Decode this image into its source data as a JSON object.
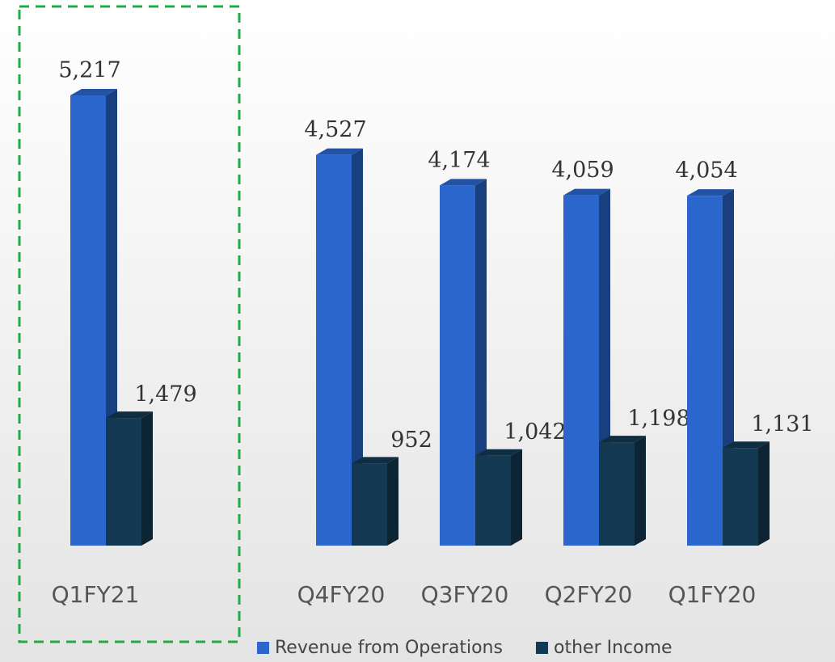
{
  "chart_data": {
    "type": "bar3d",
    "categories": [
      "Q1FY21",
      "Q4FY20",
      "Q3FY20",
      "Q2FY20",
      "Q1FY20"
    ],
    "series": [
      {
        "name": "Revenue from Operations",
        "color": "#2a66cc",
        "values": [
          5217,
          4527,
          4174,
          4059,
          4054
        ],
        "value_labels": [
          "5,217",
          "4,527",
          "4,174",
          "4,059",
          "4,054"
        ]
      },
      {
        "name": "other Income",
        "color": "#133a52",
        "values": [
          1479,
          952,
          1042,
          1198,
          1131
        ],
        "value_labels": [
          "1,479",
          "952",
          "1,042",
          "1,198",
          "1,131"
        ]
      }
    ]
  }
}
